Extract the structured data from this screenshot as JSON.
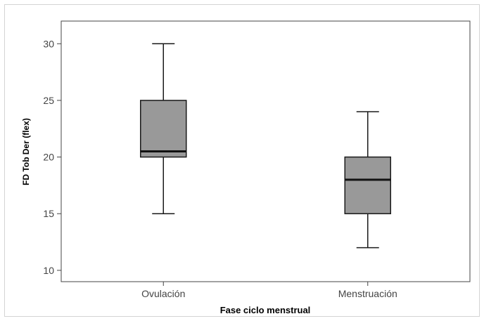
{
  "chart_data": {
    "type": "box",
    "title": "",
    "xlabel": "Fase ciclo menstrual",
    "ylabel": "FD Tob Der (flex)",
    "ylim": [
      9,
      32
    ],
    "yticks": [
      10,
      15,
      20,
      25,
      30
    ],
    "categories": [
      "Ovulación",
      "Menstruación"
    ],
    "boxes": [
      {
        "category": "Ovulación",
        "min": 15,
        "q1": 20,
        "median": 20.5,
        "q3": 25,
        "max": 30
      },
      {
        "category": "Menstruación",
        "min": 12,
        "q1": 15,
        "median": 18,
        "q3": 20,
        "max": 24
      }
    ],
    "grid": false,
    "legend": "none",
    "colors": {
      "box_fill": "#999999",
      "stroke": "#1a1a1a",
      "frame": "#444444"
    }
  }
}
